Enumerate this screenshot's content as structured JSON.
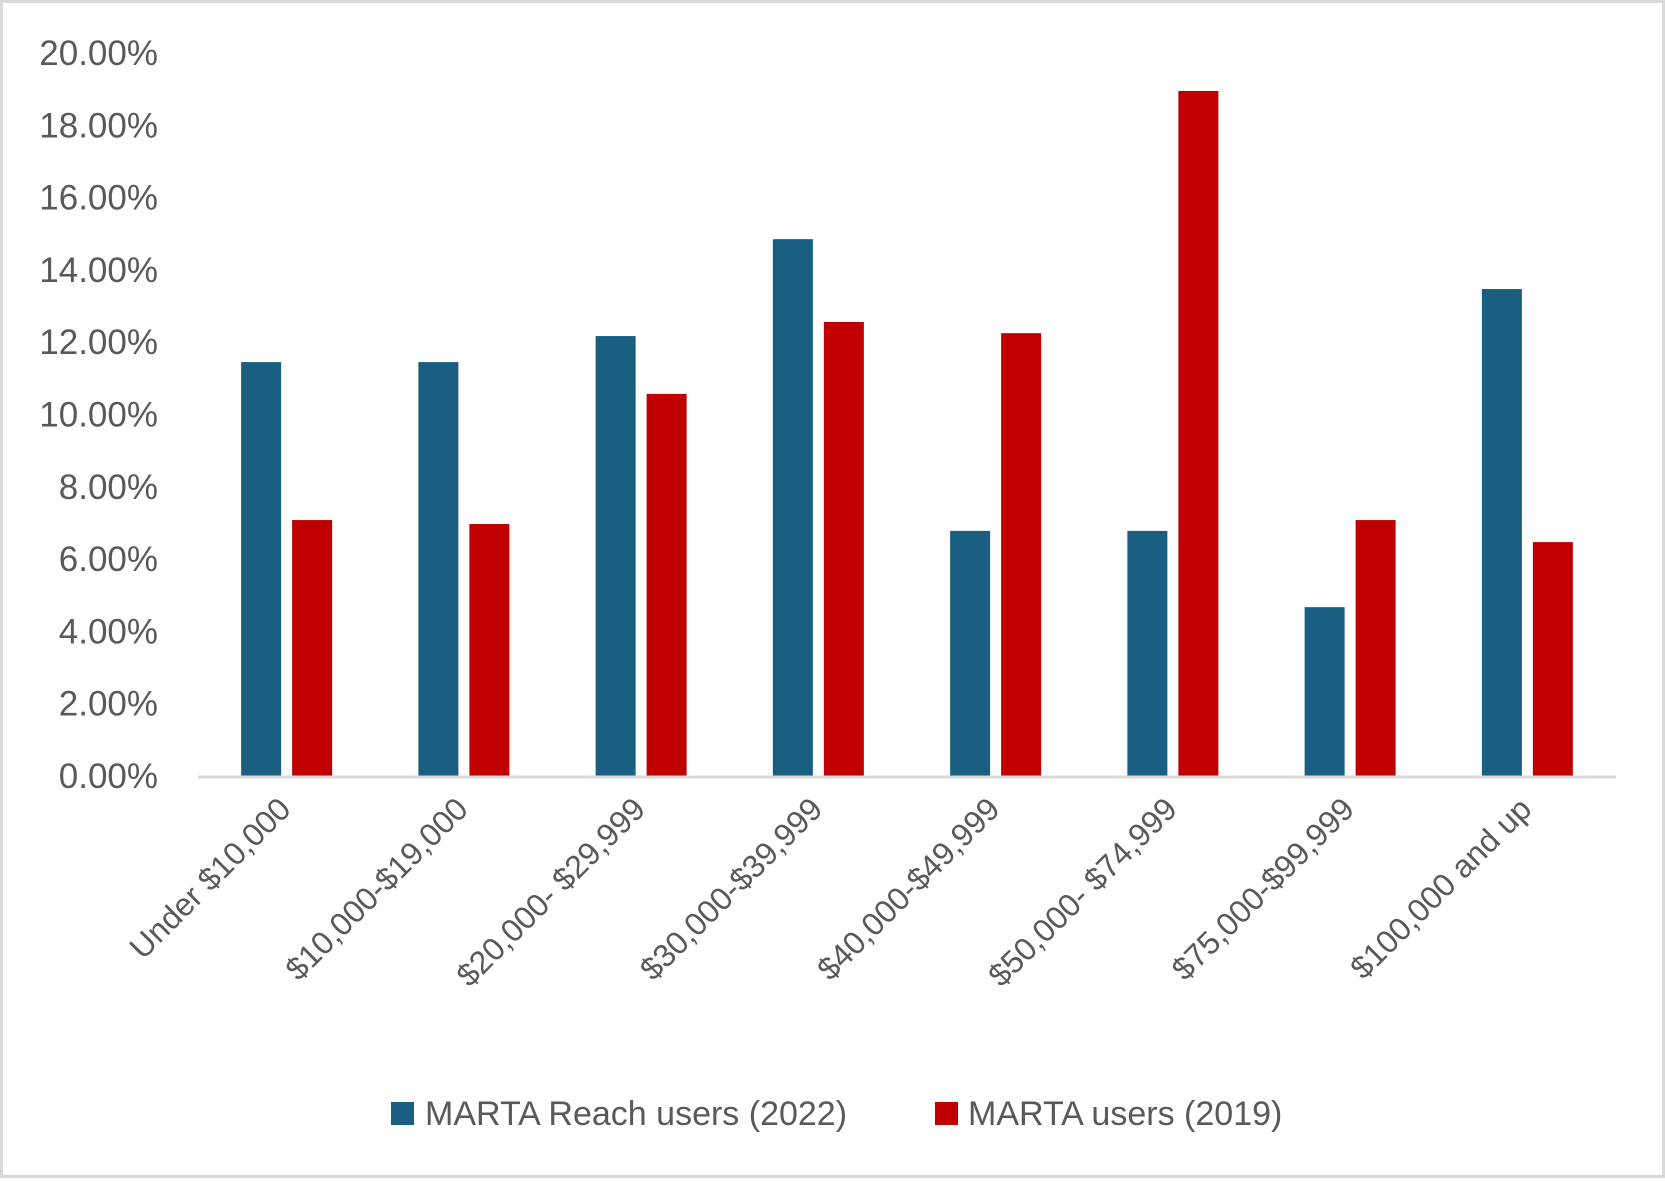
{
  "chart_data": {
    "type": "bar",
    "title": "",
    "xlabel": "",
    "ylabel": "",
    "ylim": [
      0,
      20
    ],
    "y_tick_step": 2,
    "y_tick_format": "percent_2dp",
    "y_ticks": [
      "0.00%",
      "2.00%",
      "4.00%",
      "6.00%",
      "8.00%",
      "10.00%",
      "12.00%",
      "14.00%",
      "16.00%",
      "18.00%",
      "20.00%"
    ],
    "grid": false,
    "legend_position": "bottom",
    "categories": [
      "Under $10,000",
      "$10,000-$19,000",
      "$20,000- $29,999",
      "$30,000-$39,999",
      "$40,000-$49,999",
      "$50,000- $74,999",
      "$75,000-$99,999",
      "$100,000 and up"
    ],
    "series": [
      {
        "name": "MARTA Reach users (2022)",
        "color": "#1a5e82",
        "values": [
          11.45,
          11.45,
          12.17,
          14.85,
          6.78,
          6.78,
          4.67,
          13.47
        ]
      },
      {
        "name": "MARTA users (2019)",
        "color": "#c00000",
        "values": [
          7.08,
          6.97,
          10.57,
          12.56,
          12.25,
          18.95,
          7.08,
          6.47
        ]
      }
    ]
  },
  "colors": {
    "axis": "#d9d9d9",
    "text": "#595959",
    "border": "#d9d9d9"
  }
}
